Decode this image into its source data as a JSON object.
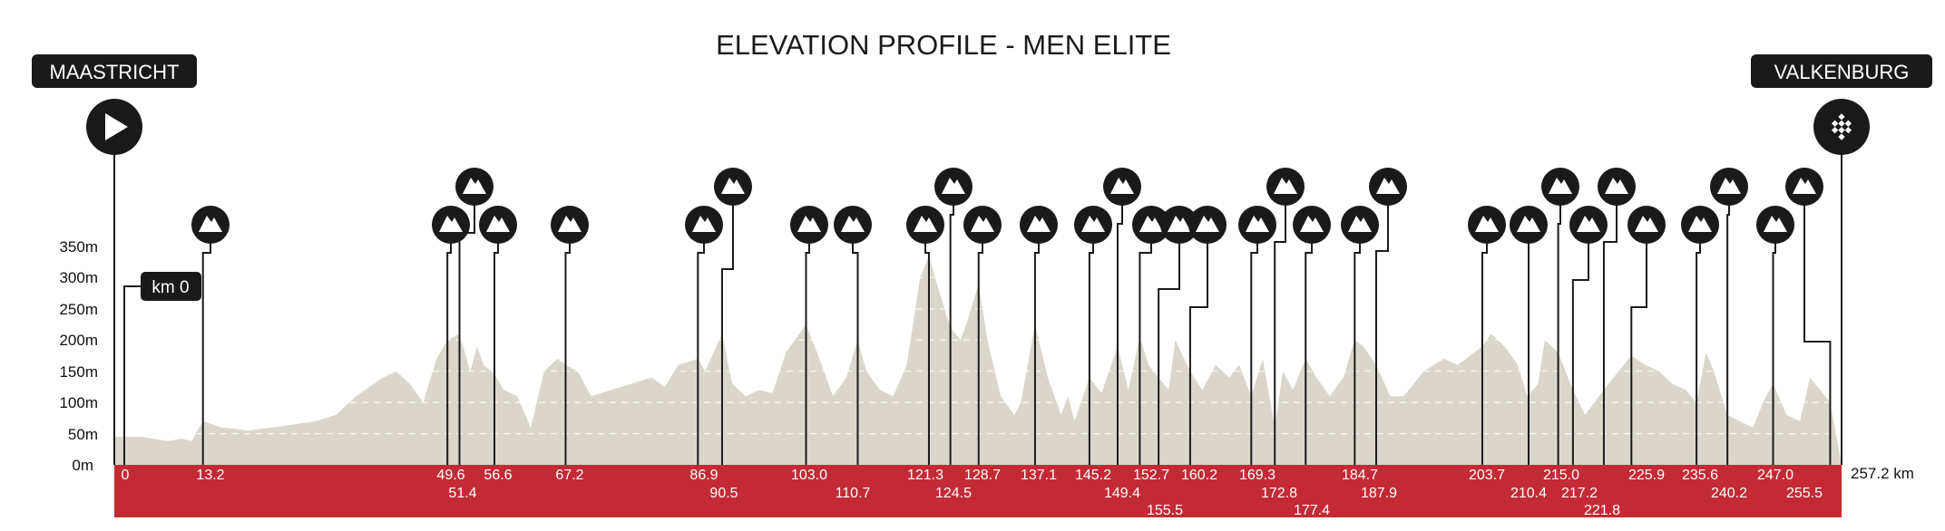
{
  "title": "ELEVATION PROFILE - MEN ELITE",
  "start_label": "MAASTRICHT",
  "finish_label": "VALKENBURG",
  "start_icon": "play-icon",
  "finish_icon": "checkered-flag-icon",
  "climb_icon": "mountain-icon",
  "km0_label": "km 0",
  "end_km_label": "257.2 km",
  "colors": {
    "profile": "#dbd6cc",
    "band": "#c42a34",
    "marker": "#1a1a1a",
    "gridline": "#ffffff"
  },
  "chart_data": {
    "type": "area",
    "title": "ELEVATION PROFILE - MEN ELITE",
    "xlabel": "",
    "ylabel": "",
    "x_unit": "km",
    "y_unit": "m",
    "xlim": [
      0,
      257.2
    ],
    "ylim": [
      0,
      350
    ],
    "y_ticks": [
      "0m",
      "50m",
      "100m",
      "150m",
      "200m",
      "250m",
      "300m",
      "350m"
    ],
    "y_tick_values": [
      0,
      50,
      100,
      150,
      200,
      250,
      300,
      350
    ],
    "grid": true,
    "profile": {
      "x": [
        0,
        4,
        8,
        10,
        11.5,
        13.2,
        16,
        20,
        25,
        30,
        33,
        36,
        40,
        42,
        44,
        46,
        48,
        49.6,
        51.4,
        53,
        54,
        55,
        56.6,
        58,
        60,
        62,
        64,
        66,
        67.2,
        69,
        71,
        74,
        77,
        80,
        82,
        84,
        86.9,
        88,
        90.5,
        92,
        94,
        96,
        98,
        100,
        103,
        105,
        107,
        109,
        110.7,
        112,
        114,
        116,
        118,
        120,
        121.3,
        122.5,
        124.5,
        126,
        127,
        128.7,
        130,
        132,
        134,
        135,
        137.1,
        139,
        141,
        142,
        143,
        145.2,
        147,
        149.4,
        151,
        152.7,
        154,
        155.5,
        157,
        158,
        160.2,
        162,
        164,
        166,
        167.5,
        169.3,
        171,
        172.8,
        174,
        175.5,
        177.4,
        179,
        181,
        183,
        184.7,
        186,
        187.9,
        190,
        192,
        195,
        198,
        200,
        203.7,
        205,
        207,
        209,
        210.4,
        212,
        213,
        215,
        217.2,
        219,
        221.8,
        224,
        225.9,
        228,
        230,
        232,
        234,
        235.6,
        237,
        238.2,
        240.2,
        242,
        244,
        245.5,
        247,
        249,
        251,
        252.5,
        254,
        255.5,
        257.2
      ],
      "y": [
        45,
        45,
        38,
        42,
        38,
        70,
        60,
        55,
        62,
        70,
        80,
        110,
        140,
        150,
        130,
        100,
        170,
        200,
        210,
        150,
        190,
        160,
        145,
        120,
        110,
        60,
        150,
        170,
        160,
        150,
        110,
        120,
        130,
        140,
        125,
        160,
        170,
        150,
        210,
        130,
        110,
        120,
        115,
        180,
        225,
        170,
        110,
        140,
        200,
        150,
        120,
        110,
        160,
        300,
        335,
        290,
        220,
        200,
        230,
        290,
        200,
        110,
        80,
        100,
        225,
        140,
        80,
        110,
        70,
        140,
        115,
        190,
        120,
        205,
        160,
        140,
        120,
        200,
        150,
        120,
        160,
        140,
        160,
        110,
        170,
        60,
        150,
        120,
        170,
        140,
        110,
        140,
        200,
        190,
        160,
        110,
        110,
        150,
        170,
        160,
        190,
        210,
        190,
        160,
        110,
        130,
        200,
        180,
        120,
        80,
        120,
        150,
        175,
        160,
        150,
        130,
        120,
        100,
        180,
        150,
        80,
        70,
        60,
        100,
        130,
        80,
        70,
        140,
        120,
        100,
        0
      ]
    },
    "climbs": [
      13.2,
      49.6,
      51.4,
      56.6,
      67.2,
      86.9,
      90.5,
      103.0,
      110.7,
      121.3,
      124.5,
      128.7,
      137.1,
      145.2,
      149.4,
      152.7,
      155.5,
      160.2,
      169.3,
      172.8,
      177.4,
      184.7,
      187.9,
      203.7,
      210.4,
      215.0,
      217.2,
      221.8,
      225.9,
      235.6,
      240.2,
      247.0,
      255.5
    ],
    "climb_labels": [
      "13.2",
      "49.6",
      "51.4",
      "56.6",
      "67.2",
      "86.9",
      "90.5",
      "103.0",
      "110.7",
      "121.3",
      "124.5",
      "128.7",
      "137.1",
      "145.2",
      "149.4",
      "152.7",
      "155.5",
      "160.2",
      "169.3",
      "172.8",
      "177.4",
      "184.7",
      "187.9",
      "203.7",
      "210.4",
      "215.0",
      "217.2",
      "221.8",
      "225.9",
      "235.6",
      "240.2",
      "247.0",
      "255.5"
    ],
    "start_km_label": "0"
  }
}
